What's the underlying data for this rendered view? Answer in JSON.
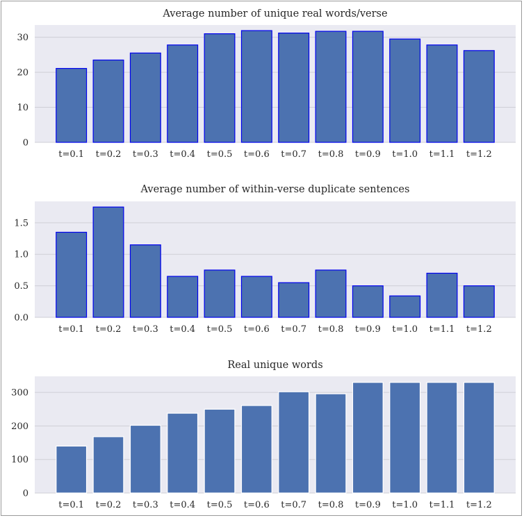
{
  "chart_data": [
    {
      "type": "bar",
      "title": "Average number of unique real words/verse",
      "xlabel": "",
      "ylabel": "",
      "categories": [
        "t=0.1",
        "t=0.2",
        "t=0.3",
        "t=0.4",
        "t=0.5",
        "t=0.6",
        "t=0.7",
        "t=0.8",
        "t=0.9",
        "t=1.0",
        "t=1.1",
        "t=1.2"
      ],
      "values": [
        21.1,
        23.5,
        25.5,
        27.8,
        31.0,
        31.9,
        31.2,
        31.7,
        31.7,
        29.5,
        27.8,
        26.2
      ],
      "ylim": [
        0,
        33.5
      ],
      "yticks": [
        0,
        10,
        20,
        30
      ],
      "ytick_labels": [
        "0",
        "10",
        "20",
        "30"
      ],
      "bar_color": "#4c72b0",
      "edge_color": "#0000ee",
      "background": "#eaeaf2",
      "grid": true
    },
    {
      "type": "bar",
      "title": "Average number of within-verse duplicate sentences",
      "xlabel": "",
      "ylabel": "",
      "categories": [
        "t=0.1",
        "t=0.2",
        "t=0.3",
        "t=0.4",
        "t=0.5",
        "t=0.6",
        "t=0.7",
        "t=0.8",
        "t=0.9",
        "t=1.0",
        "t=1.1",
        "t=1.2"
      ],
      "values": [
        1.35,
        1.75,
        1.15,
        0.65,
        0.75,
        0.65,
        0.55,
        0.75,
        0.5,
        0.34,
        0.7,
        0.5
      ],
      "ylim": [
        0,
        1.84
      ],
      "yticks": [
        0,
        0.5,
        1.0,
        1.5
      ],
      "ytick_labels": [
        "0.0",
        "0.5",
        "1.0",
        "1.5"
      ],
      "bar_color": "#4c72b0",
      "edge_color": "#0000ee",
      "background": "#eaeaf2",
      "grid": true
    },
    {
      "type": "bar",
      "title": "Real unique words",
      "xlabel": "",
      "ylabel": "",
      "categories": [
        "t=0.1",
        "t=0.2",
        "t=0.3",
        "t=0.4",
        "t=0.5",
        "t=0.6",
        "t=0.7",
        "t=0.8",
        "t=0.9",
        "t=1.0",
        "t=1.1",
        "t=1.2"
      ],
      "values": [
        140,
        168,
        202,
        238,
        250,
        261,
        302,
        296,
        330,
        330,
        330,
        330
      ],
      "ylim": [
        0,
        348
      ],
      "yticks": [
        0,
        100,
        200,
        300
      ],
      "ytick_labels": [
        "0",
        "100",
        "200",
        "300"
      ],
      "bar_color": "#4c72b0",
      "edge_color": "#ffffff",
      "background": "#eaeaf2",
      "grid": true
    }
  ]
}
